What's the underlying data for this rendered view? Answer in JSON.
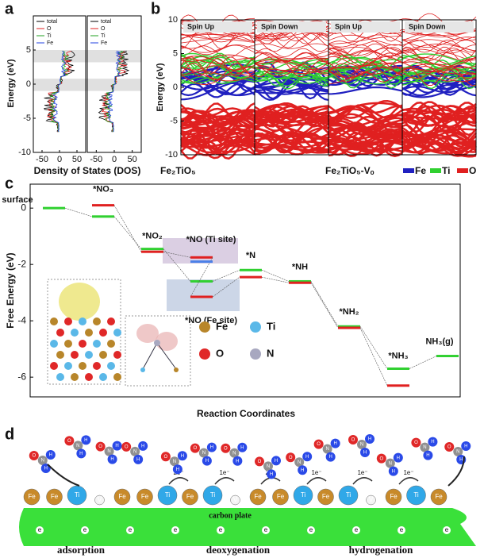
{
  "panel_labels": [
    "a",
    "b",
    "c",
    "d"
  ],
  "dos": {
    "ylabel": "Energy (eV)",
    "xlabel": "Density of States (DOS)",
    "legend": [
      "total",
      "O",
      "Ti",
      "Fe"
    ],
    "legend_colors": [
      "#000000",
      "#e02020",
      "#20a020",
      "#2040e0"
    ],
    "ylim": [
      -10,
      10
    ],
    "yticks": [
      -10,
      -5,
      0,
      5
    ],
    "xlim": [
      -75,
      75
    ],
    "xticks": [
      -50,
      0,
      50
    ]
  },
  "bands": {
    "ylabel": "Energy (eV)",
    "ylim": [
      -10,
      10
    ],
    "yticks": [
      -10,
      -5,
      0,
      5,
      10
    ],
    "columns": [
      "Spin Up",
      "Spin Down",
      "Spin Up",
      "Spin Down"
    ],
    "materials": [
      "Fe₂TiO₅",
      "Fe₂TiO₅-Vₒ"
    ],
    "legend": [
      {
        "name": "Fe",
        "color": "#2020c0"
      },
      {
        "name": "Ti",
        "color": "#30d030"
      },
      {
        "name": "O",
        "color": "#e02020"
      }
    ]
  },
  "chart_data": {
    "type": "energy-levels",
    "ylabel": "Free Energy (eV)",
    "xlabel": "Reaction Coordinates",
    "ylim": [
      -6.7,
      0.85
    ],
    "yticks": [
      0,
      -2,
      -4,
      -6
    ],
    "categories": [
      "surface",
      "*NO₃",
      "*NO₂",
      "*NO (Ti site)",
      "*NO (Fe site)",
      "*N",
      "*NH",
      "*NH₂",
      "*NH₃",
      "NH₃(g)"
    ],
    "series": [
      {
        "color": "#30d030",
        "values": [
          0,
          -0.3,
          -1.45,
          null,
          -2.6,
          -2.2,
          -2.6,
          -4.2,
          -5.7,
          -5.25
        ]
      },
      {
        "color": "#e02020",
        "values": [
          null,
          0.1,
          -1.55,
          -1.75,
          -3.15,
          -2.45,
          -2.65,
          -4.25,
          -6.3,
          null
        ]
      },
      {
        "color": "#4a80e8",
        "values": [
          null,
          null,
          null,
          -1.9,
          null,
          null,
          null,
          null,
          null,
          null
        ]
      }
    ],
    "legend": [
      {
        "name": "Fe",
        "color": "#b8862a"
      },
      {
        "name": "Ti",
        "color": "#5ab8e8"
      },
      {
        "name": "O",
        "color": "#e02828"
      },
      {
        "name": "N",
        "color": "#a8a8c0"
      }
    ]
  },
  "scheme": {
    "stages": [
      "adsorption",
      "deoxygenation",
      "hydrogenation"
    ],
    "plate": "carbon plate",
    "electron": "e",
    "surface_atoms": [
      "Fe",
      "Fe",
      "Ti",
      "V",
      "Fe",
      "Fe",
      "Ti",
      "Fe",
      "Ti",
      "V",
      "Fe",
      "Fe",
      "Ti",
      "Fe",
      "Ti",
      "V",
      "Fe",
      "Ti",
      "Fe"
    ],
    "transfers": [
      "2e⁻",
      "1e⁻",
      "2e⁻",
      "1e⁻",
      "1e⁻",
      "1e⁻"
    ],
    "molecule_atoms": [
      "O",
      "N",
      "H"
    ]
  }
}
